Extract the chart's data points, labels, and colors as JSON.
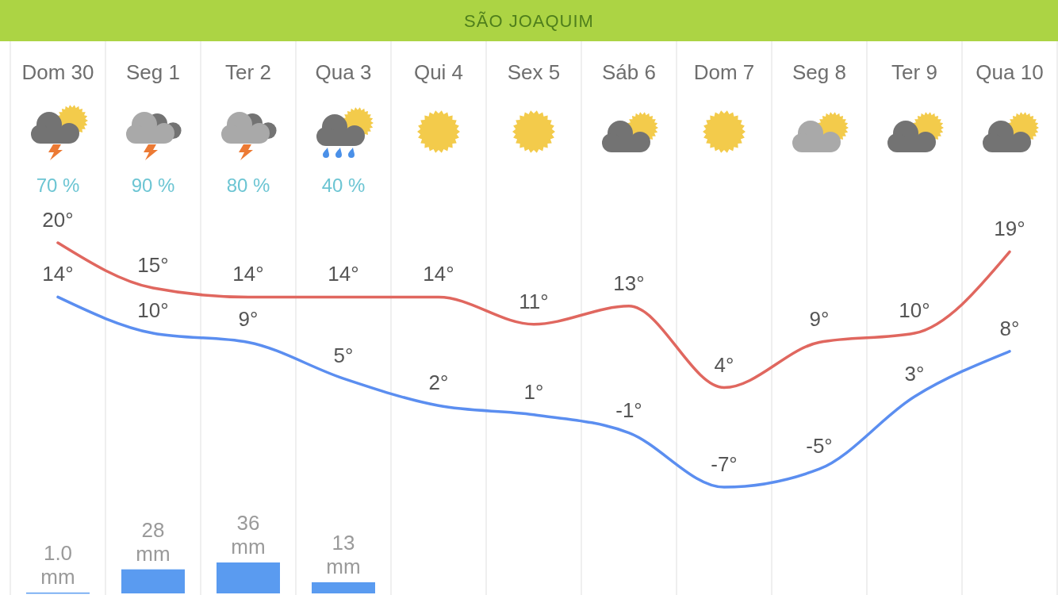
{
  "chart_data": [
    {
      "type": "line",
      "title": "SÃO JOAQUIM",
      "categories": [
        "Dom 30",
        "Seg 1",
        "Ter 2",
        "Qua 3",
        "Qui 4",
        "Sex 5",
        "Sáb 6",
        "Dom 7",
        "Seg 8",
        "Ter 9",
        "Qua 10"
      ],
      "series": [
        {
          "color": "#e0675f",
          "values": [
            20,
            15,
            14,
            14,
            14,
            11,
            13,
            4,
            9,
            10,
            19
          ],
          "value_labels": [
            "20°",
            "15°",
            "14°",
            "14°",
            "14°",
            "11°",
            "13°",
            "4°",
            "9°",
            "10°",
            "19°"
          ]
        },
        {
          "color": "#5b8ef0",
          "values": [
            14,
            10,
            9,
            5,
            2,
            1,
            -1,
            -7,
            -5,
            3,
            8
          ],
          "value_labels": [
            "14°",
            "10°",
            "9°",
            "5°",
            "2°",
            "1°",
            "-1°",
            "-7°",
            "-5°",
            "3°",
            "8°"
          ]
        }
      ],
      "grid": "x"
    },
    {
      "type": "other",
      "values": [
        70,
        90,
        80,
        40,
        null,
        null,
        null,
        null,
        null,
        null,
        null
      ],
      "value_labels": [
        "70 %",
        "90 %",
        "80 %",
        "40 %",
        null,
        null,
        null,
        null,
        null,
        null,
        null
      ],
      "color": "#6cc5d3"
    },
    {
      "type": "bar",
      "categories": [
        null,
        null,
        null,
        null,
        null,
        null,
        null,
        null,
        null,
        null,
        null
      ],
      "values": [
        1.0,
        28,
        36,
        13,
        null,
        null,
        null,
        null,
        null,
        null,
        null
      ],
      "value_labels": [
        "1.0 mm",
        "28 mm",
        "36 mm",
        "13 mm",
        null,
        null,
        null,
        null,
        null,
        null,
        null
      ],
      "color": "#5a9bf0",
      "grid": "x"
    }
  ]
}
